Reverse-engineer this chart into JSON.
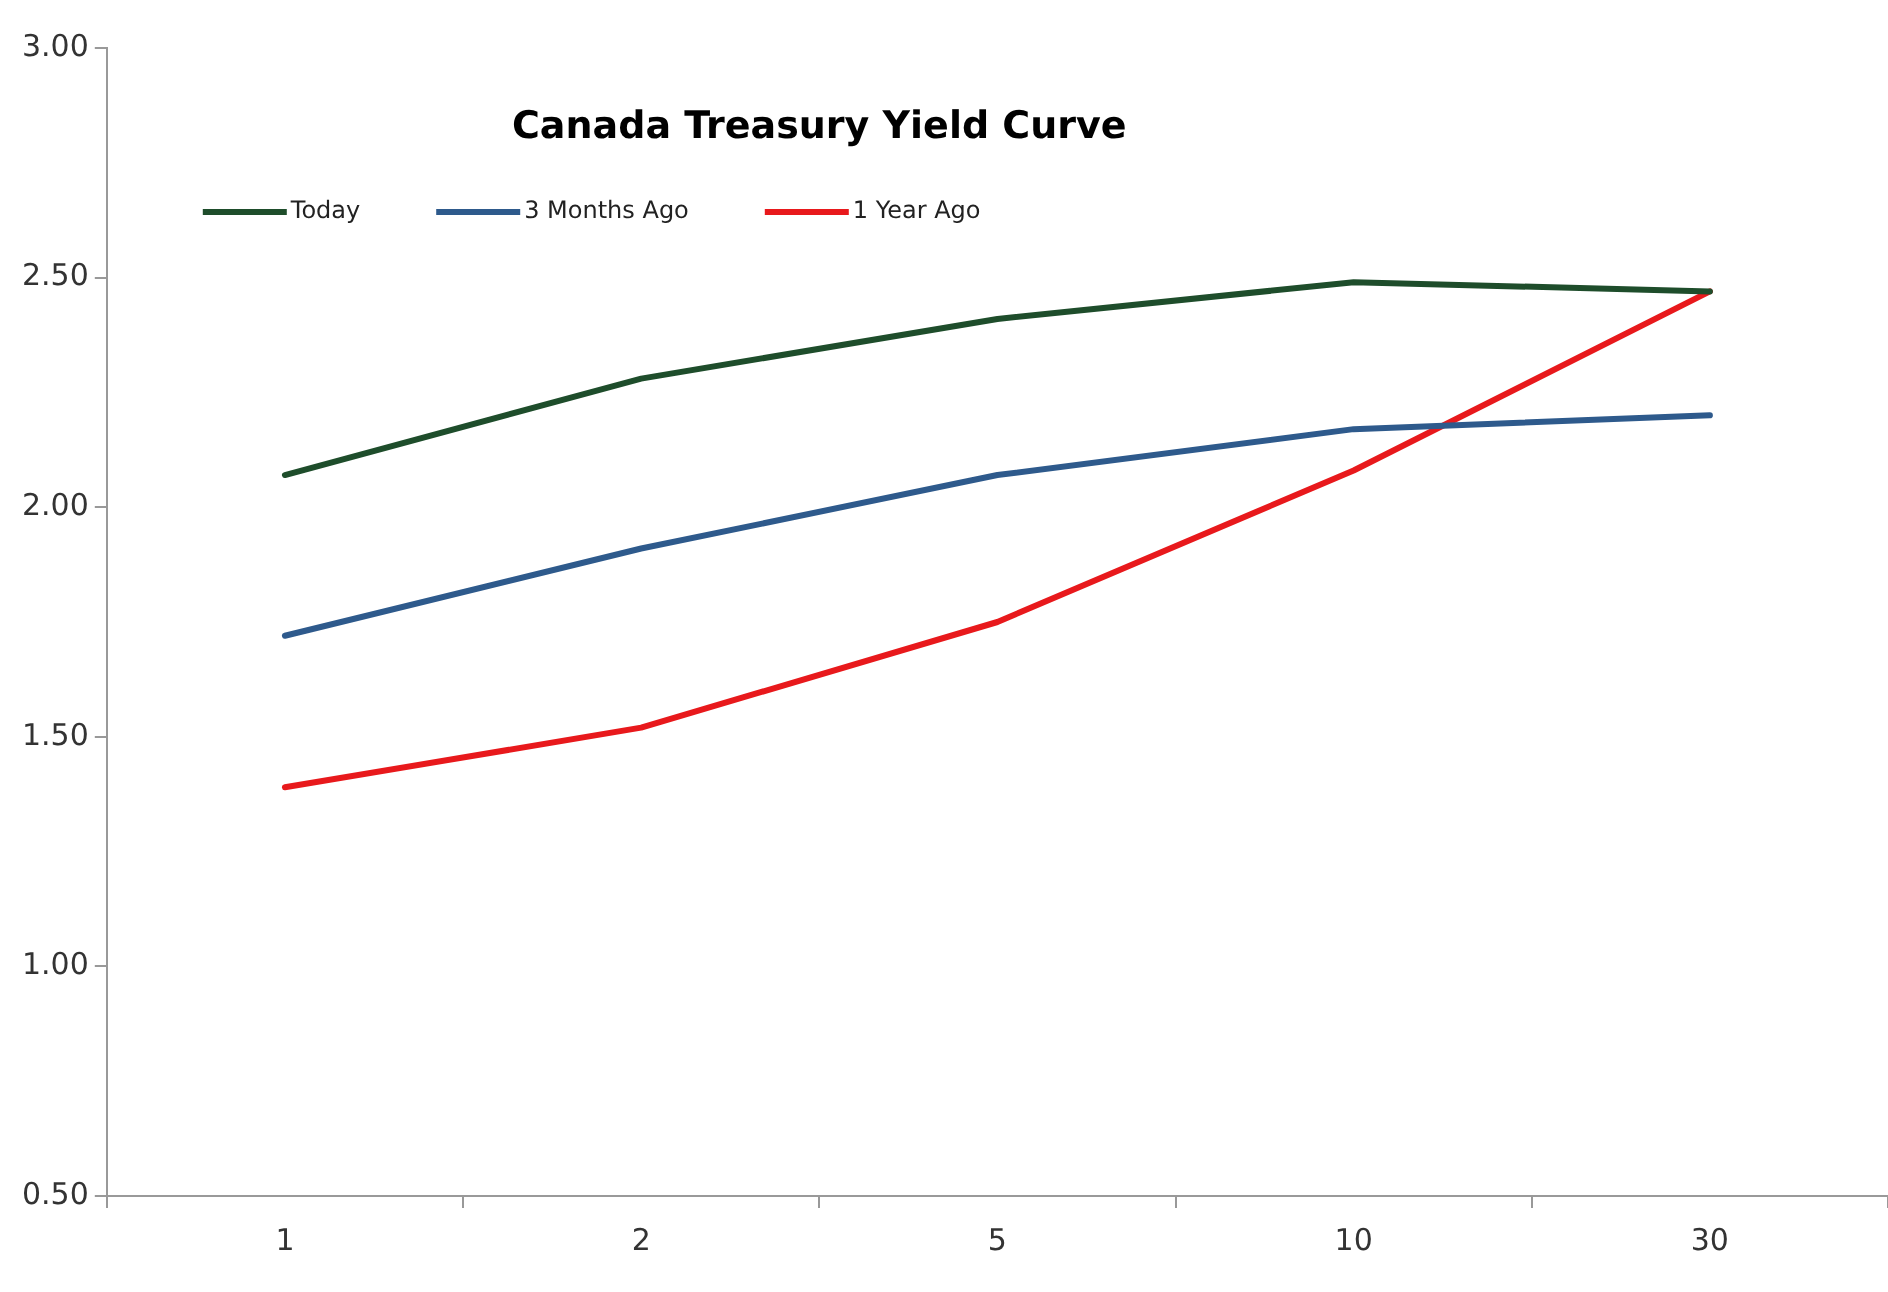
{
  "chart_data": {
    "type": "line",
    "title": "Canada Treasury Yield Curve",
    "categories": [
      "1",
      "2",
      "5",
      "10",
      "30"
    ],
    "series": [
      {
        "name": "Today",
        "color": "#1e4d2b",
        "values": [
          2.07,
          2.28,
          2.41,
          2.49,
          2.47
        ]
      },
      {
        "name": "3 Months Ago",
        "color": "#2e5a8c",
        "values": [
          1.72,
          1.91,
          2.07,
          2.17,
          2.2
        ]
      },
      {
        "name": "1 Year Ago",
        "color": "#e8191c",
        "values": [
          1.39,
          1.52,
          1.75,
          2.08,
          2.47
        ]
      }
    ],
    "ylim": [
      0.5,
      3.0
    ],
    "yticks": [
      {
        "value": 0.5,
        "label": "0.50"
      },
      {
        "value": 1.0,
        "label": "1.00"
      },
      {
        "value": 1.5,
        "label": "1.50"
      },
      {
        "value": 2.0,
        "label": "2.00"
      },
      {
        "value": 2.5,
        "label": "2.50"
      },
      {
        "value": 3.0,
        "label": "3.00"
      }
    ],
    "grid": false,
    "legend": "top left",
    "marker": "none",
    "line_style": "solid"
  }
}
